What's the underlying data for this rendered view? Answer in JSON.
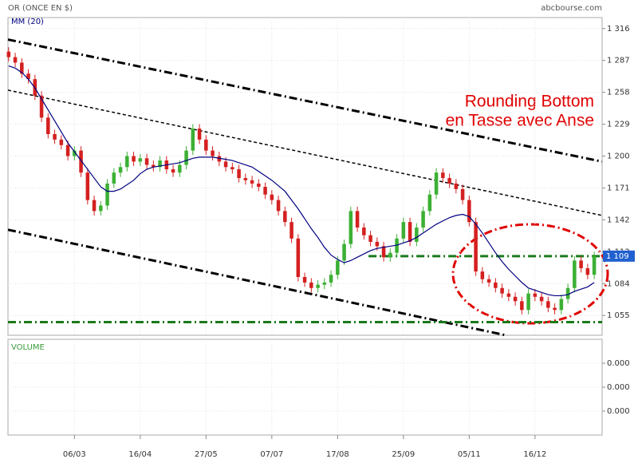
{
  "header": {
    "title": "OR (ONCE EN $)",
    "source": "abcbourse.com"
  },
  "chart_data": {
    "type": "candlestick",
    "ma_label": "MM (20)",
    "volume_label": "VOLUME",
    "annotation": [
      "Rounding Bottom",
      "en Tasse avec Anse"
    ],
    "annotation_color": "#e00000",
    "up_color": "#3cb034",
    "down_color": "#d42020",
    "ma_color": "#000080",
    "grid": true,
    "categories": [
      null,
      null,
      null,
      null,
      null,
      null,
      null,
      null,
      null,
      null,
      "06/03",
      null,
      null,
      null,
      null,
      null,
      null,
      null,
      null,
      null,
      "16/04",
      null,
      null,
      null,
      null,
      null,
      null,
      null,
      null,
      null,
      "27/05",
      null,
      null,
      null,
      null,
      null,
      null,
      null,
      null,
      null,
      "07/07",
      null,
      null,
      null,
      null,
      null,
      null,
      null,
      null,
      null,
      "17/08",
      null,
      null,
      null,
      null,
      null,
      null,
      null,
      null,
      null,
      "25/09",
      null,
      null,
      null,
      null,
      null,
      null,
      null,
      null,
      null,
      "05/11",
      null,
      null,
      null,
      null,
      null,
      null,
      null,
      null,
      null,
      "16/12",
      null,
      null,
      null,
      null,
      null,
      null,
      null,
      null,
      null
    ],
    "xlim": [
      -0.1,
      90.2
    ],
    "open": [
      1295,
      1290,
      1285,
      1275,
      1270,
      1255,
      1235,
      1220,
      1215,
      1210,
      1200,
      1205,
      1185,
      1160,
      1150,
      1155,
      1175,
      1185,
      1190,
      1200,
      1195,
      1198,
      1192,
      1190,
      1196,
      1188,
      1185,
      1192,
      1205,
      1225,
      1215,
      1205,
      1200,
      1195,
      1190,
      1188,
      1180,
      1178,
      1175,
      1172,
      1165,
      1160,
      1150,
      1140,
      1125,
      1090,
      1085,
      1080,
      1083,
      1085,
      1092,
      1105,
      1120,
      1150,
      1135,
      1128,
      1122,
      1118,
      1108,
      1112,
      1125,
      1140,
      1122,
      1135,
      1150,
      1165,
      1185,
      1180,
      1175,
      1170,
      1160,
      1140,
      1095,
      1088,
      1085,
      1080,
      1075,
      1072,
      1068,
      1060,
      1075,
      1072,
      1068,
      1062,
      1060,
      1070,
      1080,
      1105,
      1098,
      1092
    ],
    "high": [
      1299,
      1294,
      1289,
      1279,
      1274,
      1259,
      1239,
      1224,
      1219,
      1214,
      1209,
      1209,
      1189,
      1164,
      1159,
      1179,
      1189,
      1194,
      1204,
      1204,
      1202,
      1202,
      1196,
      1200,
      1200,
      1192,
      1196,
      1209,
      1229,
      1229,
      1219,
      1209,
      1204,
      1199,
      1194,
      1192,
      1184,
      1182,
      1179,
      1176,
      1169,
      1164,
      1154,
      1144,
      1129,
      1094,
      1089,
      1087,
      1089,
      1096,
      1109,
      1124,
      1154,
      1154,
      1139,
      1132,
      1126,
      1122,
      1116,
      1129,
      1144,
      1144,
      1139,
      1154,
      1169,
      1189,
      1189,
      1184,
      1179,
      1174,
      1164,
      1144,
      1099,
      1092,
      1089,
      1084,
      1079,
      1076,
      1072,
      1079,
      1079,
      1076,
      1072,
      1066,
      1074,
      1084,
      1109,
      1109,
      1102,
      1113
    ],
    "low": [
      1286,
      1281,
      1271,
      1266,
      1251,
      1231,
      1216,
      1211,
      1206,
      1196,
      1196,
      1181,
      1156,
      1146,
      1146,
      1151,
      1171,
      1181,
      1186,
      1191,
      1191,
      1188,
      1186,
      1186,
      1184,
      1181,
      1181,
      1188,
      1201,
      1211,
      1201,
      1196,
      1191,
      1186,
      1184,
      1176,
      1174,
      1171,
      1168,
      1161,
      1156,
      1146,
      1136,
      1121,
      1086,
      1081,
      1076,
      1076,
      1079,
      1081,
      1088,
      1101,
      1116,
      1131,
      1124,
      1118,
      1114,
      1104,
      1104,
      1108,
      1121,
      1118,
      1118,
      1131,
      1146,
      1161,
      1176,
      1171,
      1166,
      1156,
      1136,
      1091,
      1084,
      1081,
      1076,
      1071,
      1068,
      1064,
      1056,
      1056,
      1068,
      1064,
      1058,
      1056,
      1056,
      1066,
      1076,
      1094,
      1088,
      1088
    ],
    "close": [
      1290,
      1285,
      1275,
      1270,
      1255,
      1235,
      1220,
      1215,
      1210,
      1200,
      1205,
      1185,
      1160,
      1150,
      1155,
      1175,
      1185,
      1190,
      1200,
      1195,
      1198,
      1192,
      1190,
      1196,
      1188,
      1185,
      1192,
      1205,
      1225,
      1215,
      1205,
      1200,
      1195,
      1190,
      1188,
      1180,
      1178,
      1175,
      1172,
      1165,
      1160,
      1150,
      1140,
      1125,
      1090,
      1085,
      1080,
      1083,
      1085,
      1092,
      1105,
      1120,
      1150,
      1135,
      1128,
      1122,
      1118,
      1108,
      1112,
      1125,
      1140,
      1122,
      1135,
      1150,
      1165,
      1185,
      1180,
      1175,
      1170,
      1160,
      1140,
      1095,
      1088,
      1085,
      1080,
      1075,
      1072,
      1068,
      1060,
      1075,
      1072,
      1068,
      1062,
      1060,
      1070,
      1080,
      1105,
      1098,
      1092,
      1109
    ],
    "ma": [
      1282,
      1280,
      1276,
      1270,
      1262,
      1252,
      1242,
      1232,
      1222,
      1212,
      1204,
      1196,
      1188,
      1180,
      1172,
      1168,
      1168,
      1170,
      1174,
      1178,
      1184,
      1188,
      1190,
      1191,
      1192,
      1193,
      1194,
      1196,
      1198,
      1199,
      1199,
      1199,
      1198,
      1197,
      1196,
      1194,
      1192,
      1190,
      1186,
      1182,
      1178,
      1173,
      1168,
      1160,
      1152,
      1143,
      1134,
      1126,
      1117,
      1110,
      1106,
      1103,
      1105,
      1108,
      1111,
      1114,
      1116,
      1117,
      1118,
      1119,
      1121,
      1123,
      1126,
      1130,
      1134,
      1138,
      1141,
      1144,
      1146,
      1147,
      1145,
      1138,
      1130,
      1121,
      1112,
      1104,
      1097,
      1091,
      1085,
      1080,
      1078,
      1076,
      1074,
      1073,
      1073,
      1074,
      1077,
      1079,
      1081,
      1085
    ],
    "ylim": [
      1037,
      1326
    ],
    "yticks": [
      {
        "value": 1055,
        "label": "1 055"
      },
      {
        "value": 1084,
        "label": "1 084"
      },
      {
        "value": 1113,
        "label": "1 113"
      },
      {
        "value": 1142,
        "label": "1 142"
      },
      {
        "value": 1171,
        "label": "1 171"
      },
      {
        "value": 1200,
        "label": "1 200"
      },
      {
        "value": 1229,
        "label": "1 229"
      },
      {
        "value": 1258,
        "label": "1 258"
      },
      {
        "value": 1287,
        "label": "1 287"
      },
      {
        "value": 1316,
        "label": "1 316"
      }
    ],
    "last_price": {
      "value": 1109,
      "label": "1 109"
    },
    "trendlines": [
      {
        "x": [
          -0.1,
          90.2
        ],
        "y": [
          1306,
          1195
        ],
        "style": "dashdot",
        "color": "#000000"
      },
      {
        "x": [
          -0.1,
          90.2
        ],
        "y": [
          1260,
          1146
        ],
        "style": "dashed",
        "color": "#000000"
      },
      {
        "x": [
          -0.1,
          75.6
        ],
        "y": [
          1133,
          1037
        ],
        "style": "dashdot",
        "color": "#000000"
      },
      {
        "x": [
          54.7,
          90.2
        ],
        "y": [
          1109,
          1109
        ],
        "style": "dashdot",
        "color": "#1a7a1a"
      },
      {
        "x": [
          -0.1,
          90.2
        ],
        "y": [
          1049,
          1049
        ],
        "style": "dashdot",
        "color": "#1a7a1a"
      }
    ],
    "volume_ylim": [
      0,
      4
    ],
    "volume_yticks": [
      {
        "value": 3,
        "label": "0.000"
      },
      {
        "value": 2,
        "label": "0.000"
      },
      {
        "value": 1,
        "label": "0.000"
      }
    ]
  }
}
